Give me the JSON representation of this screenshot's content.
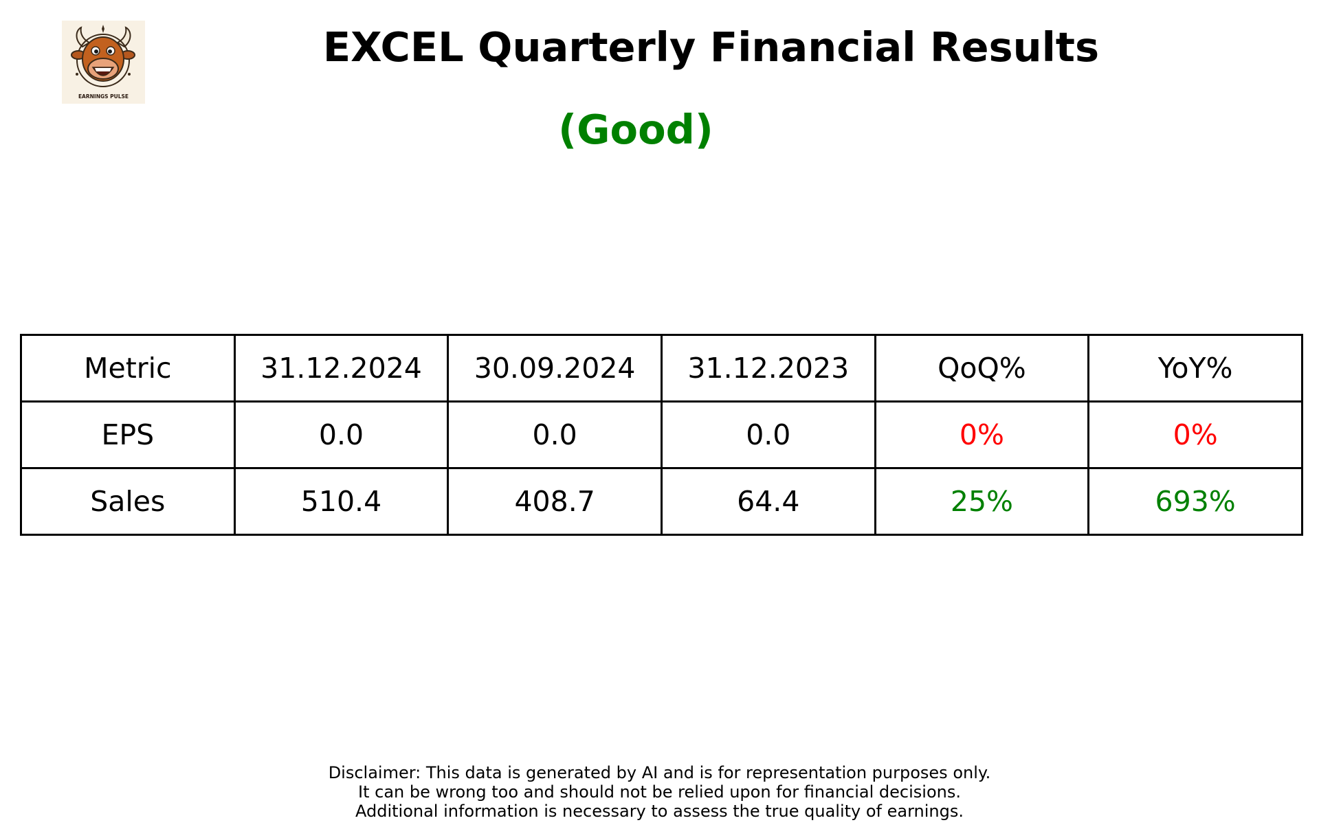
{
  "logo": {
    "text": "EARNINGS PULSE"
  },
  "header": {
    "title": "EXCEL Quarterly Financial Results",
    "rating": "(Good)",
    "rating_color": "#008000"
  },
  "table": {
    "headers": [
      "Metric",
      "31.12.2024",
      "30.09.2024",
      "31.12.2023",
      "QoQ%",
      "YoY%"
    ],
    "rows": [
      {
        "cells": [
          "EPS",
          "0.0",
          "0.0",
          "0.0",
          "0%",
          "0%"
        ],
        "change_color": "#ff0000"
      },
      {
        "cells": [
          "Sales",
          "510.4",
          "408.7",
          "64.4",
          "25%",
          "693%"
        ],
        "change_color": "#008000"
      }
    ]
  },
  "disclaimer": {
    "lines": [
      "Disclaimer: This data is generated by AI and is for representation purposes only.",
      "It can be wrong too and should not be relied upon for financial decisions.",
      "Additional information is necessary to assess the true quality of earnings."
    ]
  }
}
